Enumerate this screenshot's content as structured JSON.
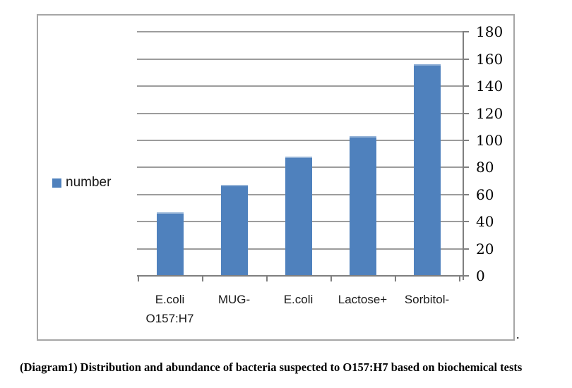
{
  "figure": {
    "caption": "(Diagram1) Distribution and abundance of bacteria suspected to O157:H7 based on biochemical tests",
    "period_after_chart": "."
  },
  "chart_data": {
    "type": "bar",
    "title": "",
    "categories": [
      "E.coli O157:H7",
      "MUG-",
      "E.coli",
      "Lactose+",
      "Sorbitol-"
    ],
    "category_label_lines": [
      [
        "E.coli",
        "O157:H7"
      ],
      [
        "MUG-"
      ],
      [
        "E.coli"
      ],
      [
        "Lactose+"
      ],
      [
        "Sorbitol-"
      ]
    ],
    "series": [
      {
        "name": "number",
        "values": [
          47,
          67,
          88,
          103,
          156
        ]
      }
    ],
    "ylabel": "",
    "xlabel": "",
    "ylim": [
      0,
      180
    ],
    "yticks": [
      0,
      20,
      40,
      60,
      80,
      100,
      120,
      140,
      160,
      180
    ],
    "axis_side": "right",
    "grid": true,
    "legend": {
      "label": "number",
      "position": "middle-left"
    },
    "colors": {
      "bar": "#4f81bd",
      "bar_top_edge": "#95b3d7",
      "gridline": "#9c9c9c",
      "axis": "#7f7f7f",
      "frame_border": "#a6a6a6",
      "text": "#000000"
    }
  }
}
